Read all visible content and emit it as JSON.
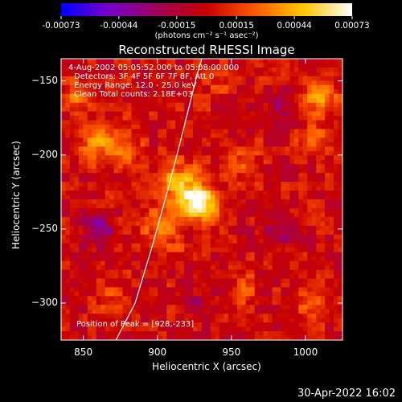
{
  "colorbar": {
    "ticks": [
      "-0.00073",
      "-0.00044",
      "-0.00015",
      "0.00015",
      "0.00044",
      "0.00073"
    ],
    "tick_values": [
      -0.00073,
      -0.00044,
      -0.00015,
      0.00015,
      0.00044,
      0.00073
    ],
    "unit_label": "(photons cm⁻² s⁻¹ asec⁻²)",
    "colors": [
      "#0000ff",
      "#7a00c8",
      "#a0005a",
      "#c80000",
      "#ff5a00",
      "#ffc800",
      "#ffffff"
    ]
  },
  "chart_data": {
    "type": "heatmap",
    "title": "Reconstructed RHESSI Image",
    "xlabel": "Heliocentric X (arcsec)",
    "ylabel": "Heliocentric Y (arcsec)",
    "xlim": [
      835,
      1025
    ],
    "ylim": [
      -325,
      -135
    ],
    "xticks": [
      850,
      900,
      950,
      1000
    ],
    "yticks": [
      -150,
      -200,
      -250,
      -300
    ],
    "xtick_labels": [
      "850",
      "900",
      "950",
      "1000"
    ],
    "ytick_labels": [
      "-150",
      "-200",
      "-250",
      "-300"
    ],
    "value_range": [
      -0.00073,
      0.00073
    ],
    "peak": {
      "x": 928,
      "y": -233
    },
    "limb_curve": [
      [
        872,
        -325
      ],
      [
        885,
        -300
      ],
      [
        897,
        -260
      ],
      [
        908,
        -220
      ],
      [
        917,
        -185
      ],
      [
        927,
        -145
      ],
      [
        930,
        -135
      ]
    ],
    "sources": [
      {
        "x": 928,
        "y": -233,
        "amp": 1.0,
        "sigma": 8
      },
      {
        "x": 915,
        "y": -218,
        "amp": 0.55,
        "sigma": 10
      },
      {
        "x": 905,
        "y": -250,
        "amp": 0.45,
        "sigma": 10
      },
      {
        "x": 860,
        "y": -190,
        "amp": 0.5,
        "sigma": 9
      },
      {
        "x": 845,
        "y": -160,
        "amp": 0.35,
        "sigma": 7
      },
      {
        "x": 1010,
        "y": -160,
        "amp": 0.45,
        "sigma": 9
      },
      {
        "x": 1005,
        "y": -190,
        "amp": 0.35,
        "sigma": 7
      },
      {
        "x": 880,
        "y": -200,
        "amp": 0.35,
        "sigma": 8
      },
      {
        "x": 960,
        "y": -205,
        "amp": 0.25,
        "sigma": 8
      },
      {
        "x": 960,
        "y": -290,
        "amp": 0.3,
        "sigma": 7
      },
      {
        "x": 1005,
        "y": -300,
        "amp": 0.3,
        "sigma": 7
      },
      {
        "x": 870,
        "y": -300,
        "amp": 0.25,
        "sigma": 7
      },
      {
        "x": 940,
        "y": -150,
        "amp": 0.2,
        "sigma": 8
      },
      {
        "x": 860,
        "y": -250,
        "amp": -0.5,
        "sigma": 7
      },
      {
        "x": 985,
        "y": -165,
        "amp": -0.35,
        "sigma": 6
      },
      {
        "x": 930,
        "y": -300,
        "amp": -0.2,
        "sigma": 7
      },
      {
        "x": 985,
        "y": -250,
        "amp": -0.3,
        "sigma": 8
      }
    ]
  },
  "info": {
    "time_range": "4-Aug-2002 05:05:52.000 to 05:08:00.000",
    "detectors": "Detectors: 3F 4F 5F 6F 7F 8F, Att 0",
    "energy": "Energy Range: 12.0 - 25.0 keV",
    "clean": "Clean     Total counts: 2.18E+03",
    "peak_text": "Position of Peak = [928,-233]"
  },
  "footer": "30-Apr-2022 16:02"
}
